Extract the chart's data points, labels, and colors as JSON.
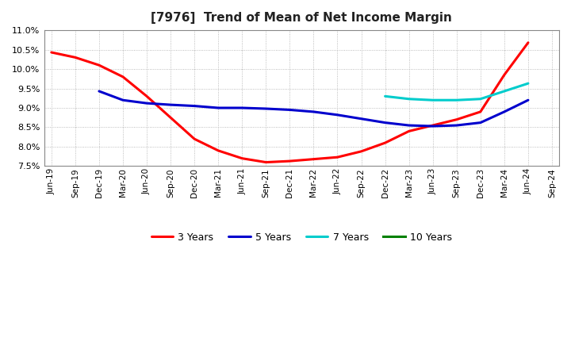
{
  "title": "[7976]  Trend of Mean of Net Income Margin",
  "ylim": [
    0.075,
    0.11
  ],
  "yticks": [
    0.075,
    0.08,
    0.085,
    0.09,
    0.095,
    0.1,
    0.105,
    0.11
  ],
  "background_color": "#ffffff",
  "grid_color": "#aaaaaa",
  "series": {
    "3 Years": {
      "color": "#ff0000",
      "x": [
        "Jun-19",
        "Sep-19",
        "Dec-19",
        "Mar-20",
        "Jun-20",
        "Sep-20",
        "Dec-20",
        "Mar-21",
        "Jun-21",
        "Sep-21",
        "Dec-21",
        "Mar-22",
        "Jun-22",
        "Sep-22",
        "Dec-22",
        "Mar-23",
        "Jun-23",
        "Sep-23",
        "Dec-23",
        "Mar-24",
        "Jun-24"
      ],
      "y": [
        0.1043,
        0.103,
        0.101,
        0.098,
        0.093,
        0.0875,
        0.082,
        0.079,
        0.077,
        0.076,
        0.0763,
        0.0768,
        0.0773,
        0.0788,
        0.081,
        0.084,
        0.0855,
        0.087,
        0.089,
        0.0985,
        0.1068
      ]
    },
    "5 Years": {
      "color": "#0000cd",
      "x": [
        "Dec-19",
        "Mar-20",
        "Jun-20",
        "Sep-20",
        "Dec-20",
        "Mar-21",
        "Jun-21",
        "Sep-21",
        "Dec-21",
        "Mar-22",
        "Jun-22",
        "Sep-22",
        "Dec-22",
        "Mar-23",
        "Jun-23",
        "Sep-23",
        "Dec-23",
        "Mar-24",
        "Jun-24"
      ],
      "y": [
        0.0943,
        0.092,
        0.0912,
        0.0908,
        0.0905,
        0.09,
        0.09,
        0.0898,
        0.0895,
        0.089,
        0.0882,
        0.0872,
        0.0862,
        0.0855,
        0.0853,
        0.0855,
        0.0862,
        0.089,
        0.092
      ]
    },
    "7 Years": {
      "color": "#00cccc",
      "x": [
        "Dec-22",
        "Mar-23",
        "Jun-23",
        "Sep-23",
        "Dec-23",
        "Mar-24",
        "Jun-24"
      ],
      "y": [
        0.093,
        0.0923,
        0.092,
        0.092,
        0.0923,
        0.0943,
        0.0963
      ]
    },
    "10 Years": {
      "color": "#008000",
      "x": [],
      "y": []
    }
  },
  "xtick_labels": [
    "Jun-19",
    "Sep-19",
    "Dec-19",
    "Mar-20",
    "Jun-20",
    "Sep-20",
    "Dec-20",
    "Mar-21",
    "Jun-21",
    "Sep-21",
    "Dec-21",
    "Mar-22",
    "Jun-22",
    "Sep-22",
    "Dec-22",
    "Mar-23",
    "Jun-23",
    "Sep-23",
    "Dec-23",
    "Mar-24",
    "Jun-24",
    "Sep-24"
  ],
  "legend_order": [
    "3 Years",
    "5 Years",
    "7 Years",
    "10 Years"
  ]
}
